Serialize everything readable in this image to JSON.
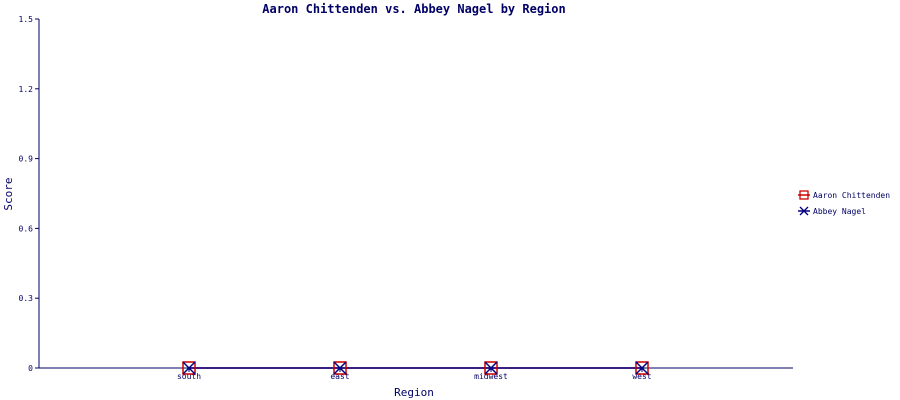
{
  "chart_data": {
    "type": "line",
    "title": "Aaron Chittenden vs. Abbey Nagel by Region",
    "xlabel": "Region",
    "ylabel": "Score",
    "categories": [
      "south",
      "east",
      "midwest",
      "west"
    ],
    "ylim": [
      0,
      1.5
    ],
    "yticks": [
      "0",
      "0.3",
      "0.6",
      "0.9",
      "1.2",
      "1.5"
    ],
    "grid": false,
    "legend_position": "right",
    "series": [
      {
        "name": "Aaron Chittenden",
        "values": [
          0,
          0,
          0,
          0
        ],
        "color": "#cc0000",
        "marker": "square"
      },
      {
        "name": "Abbey Nagel",
        "values": [
          0,
          0,
          0,
          0
        ],
        "color": "#000080",
        "marker": "x"
      }
    ],
    "colors": {
      "axis": "#000066",
      "text": "#000066"
    }
  }
}
